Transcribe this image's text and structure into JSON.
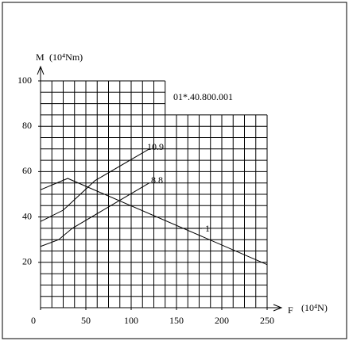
{
  "chart_data": {
    "type": "line",
    "y_label": "M",
    "y_unit": "(10⁴Nm)",
    "x_label": "F",
    "x_unit": "(10⁴N)",
    "annotation": "01*.40.800.001",
    "xlim": [
      0,
      250
    ],
    "xticks": [
      0,
      50,
      100,
      150,
      200,
      250
    ],
    "ylim": [
      0,
      100
    ],
    "yticks": [
      20,
      40,
      60,
      80,
      100
    ],
    "grid": true,
    "series": [
      {
        "name": "10.9",
        "color": "#000000",
        "x": [
          0,
          25,
          60,
          120
        ],
        "values": [
          38,
          43,
          56,
          70
        ]
      },
      {
        "name": "8.8",
        "color": "#000000",
        "x": [
          0,
          20,
          35,
          120
        ],
        "values": [
          27,
          30,
          35,
          55
        ]
      },
      {
        "name": "1",
        "color": "#000000",
        "x": [
          0,
          30,
          250
        ],
        "values": [
          52,
          57,
          19
        ]
      }
    ]
  }
}
